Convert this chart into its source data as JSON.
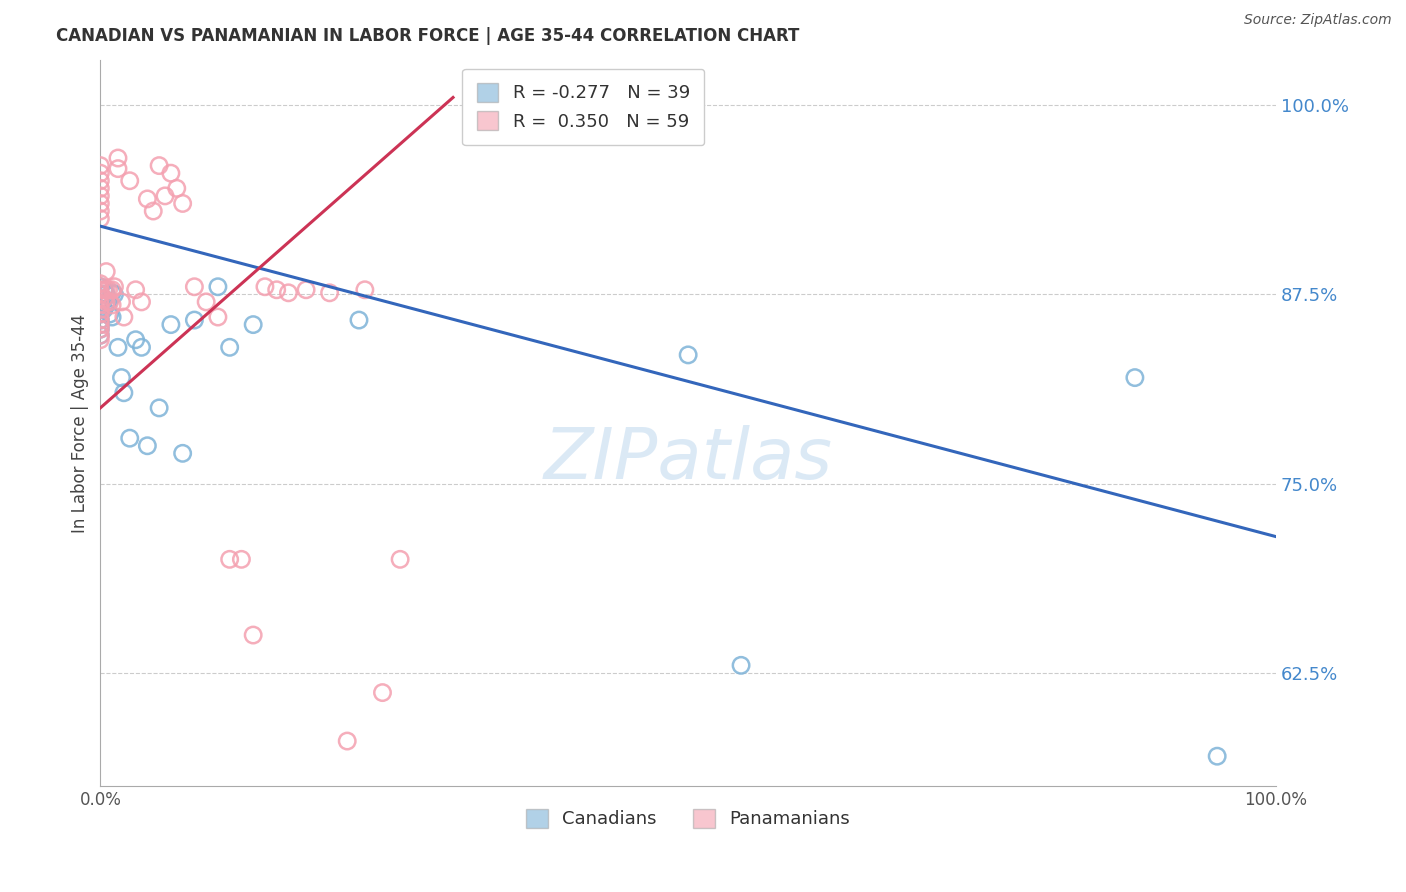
{
  "title": "CANADIAN VS PANAMANIAN IN LABOR FORCE | AGE 35-44 CORRELATION CHART",
  "source": "Source: ZipAtlas.com",
  "ylabel": "In Labor Force | Age 35-44",
  "xlim": [
    0.0,
    1.0
  ],
  "ylim": [
    0.55,
    1.03
  ],
  "yticks": [
    0.625,
    0.75,
    0.875,
    1.0
  ],
  "ytick_labels": [
    "62.5%",
    "75.0%",
    "87.5%",
    "100.0%"
  ],
  "xticks": [
    0.0,
    0.2,
    0.4,
    0.6,
    0.8,
    1.0
  ],
  "xtick_labels": [
    "0.0%",
    "",
    "",
    "",
    "",
    "100.0%"
  ],
  "canadian_R": -0.277,
  "canadian_N": 39,
  "panamanian_R": 0.35,
  "panamanian_N": 59,
  "canadian_color": "#7EB3D8",
  "panamanian_color": "#F4A0B0",
  "canadian_line_color": "#3366BB",
  "panamanian_line_color": "#CC3355",
  "background_color": "#FFFFFF",
  "watermark_text": "ZIPatlas",
  "watermark_color": "#B8D4ED",
  "grid_color": "#CCCCCC",
  "canadian_line_x0": 0.0,
  "canadian_line_y0": 0.92,
  "canadian_line_x1": 1.0,
  "canadian_line_y1": 0.715,
  "panamanian_line_x0": 0.0,
  "panamanian_line_y0": 0.8,
  "panamanian_line_x1": 0.3,
  "panamanian_line_y1": 1.005,
  "canadian_x": [
    0.0,
    0.0,
    0.0,
    0.0,
    0.0,
    0.0,
    0.0,
    0.0,
    0.0,
    0.0,
    0.003,
    0.003,
    0.003,
    0.005,
    0.005,
    0.007,
    0.008,
    0.01,
    0.01,
    0.012,
    0.015,
    0.018,
    0.02,
    0.025,
    0.03,
    0.035,
    0.04,
    0.05,
    0.06,
    0.07,
    0.08,
    0.1,
    0.11,
    0.13,
    0.22,
    0.5,
    0.545,
    0.88,
    0.95
  ],
  "canadian_y": [
    0.88,
    0.875,
    0.872,
    0.868,
    0.865,
    0.862,
    0.858,
    0.855,
    0.852,
    0.848,
    0.878,
    0.872,
    0.865,
    0.875,
    0.868,
    0.87,
    0.862,
    0.876,
    0.86,
    0.875,
    0.84,
    0.82,
    0.81,
    0.78,
    0.845,
    0.84,
    0.775,
    0.8,
    0.855,
    0.77,
    0.858,
    0.88,
    0.84,
    0.855,
    0.858,
    0.835,
    0.63,
    0.82,
    0.57
  ],
  "panamanian_x": [
    0.0,
    0.0,
    0.0,
    0.0,
    0.0,
    0.0,
    0.0,
    0.0,
    0.0,
    0.0,
    0.0,
    0.0,
    0.0,
    0.0,
    0.0,
    0.0,
    0.0,
    0.0,
    0.0,
    0.0,
    0.003,
    0.003,
    0.005,
    0.005,
    0.005,
    0.007,
    0.008,
    0.01,
    0.01,
    0.012,
    0.015,
    0.015,
    0.018,
    0.02,
    0.025,
    0.03,
    0.035,
    0.04,
    0.045,
    0.05,
    0.055,
    0.06,
    0.065,
    0.07,
    0.08,
    0.09,
    0.1,
    0.11,
    0.12,
    0.13,
    0.14,
    0.15,
    0.16,
    0.175,
    0.195,
    0.21,
    0.225,
    0.24,
    0.255
  ],
  "panamanian_y": [
    0.882,
    0.878,
    0.875,
    0.872,
    0.868,
    0.865,
    0.862,
    0.858,
    0.855,
    0.852,
    0.848,
    0.845,
    0.96,
    0.955,
    0.95,
    0.945,
    0.94,
    0.935,
    0.93,
    0.925,
    0.878,
    0.872,
    0.89,
    0.878,
    0.87,
    0.878,
    0.87,
    0.878,
    0.868,
    0.88,
    0.965,
    0.958,
    0.87,
    0.86,
    0.95,
    0.878,
    0.87,
    0.938,
    0.93,
    0.96,
    0.94,
    0.955,
    0.945,
    0.935,
    0.88,
    0.87,
    0.86,
    0.7,
    0.7,
    0.65,
    0.88,
    0.878,
    0.876,
    0.878,
    0.876,
    0.58,
    0.878,
    0.612,
    0.7
  ]
}
